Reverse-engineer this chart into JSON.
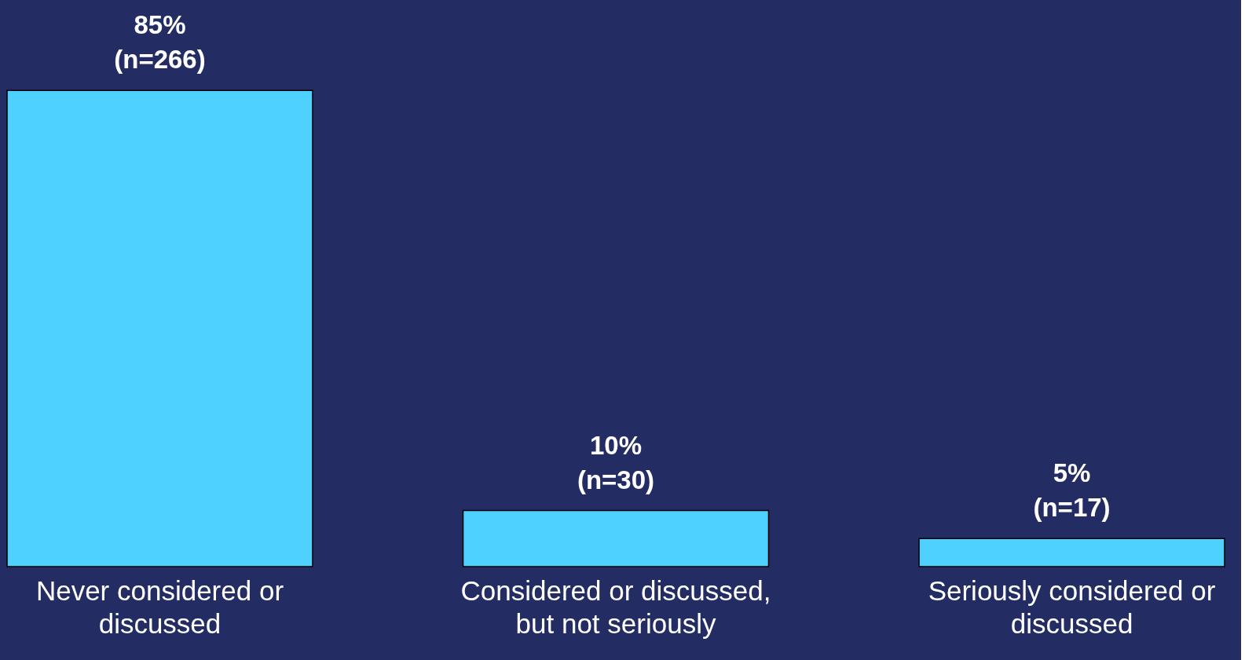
{
  "chart_data": {
    "type": "bar",
    "categories": [
      "Never considered or\ndiscussed",
      "Considered or discussed,\nbut not seriously",
      "Seriously considered or\ndiscussed"
    ],
    "values": [
      85,
      10,
      5
    ],
    "value_labels": [
      "85%\n(n=266)",
      "10%\n(n=30)",
      "5%\n(n=17)"
    ],
    "color": "#4fd1ff",
    "grid": false,
    "tick_labels": "x"
  }
}
